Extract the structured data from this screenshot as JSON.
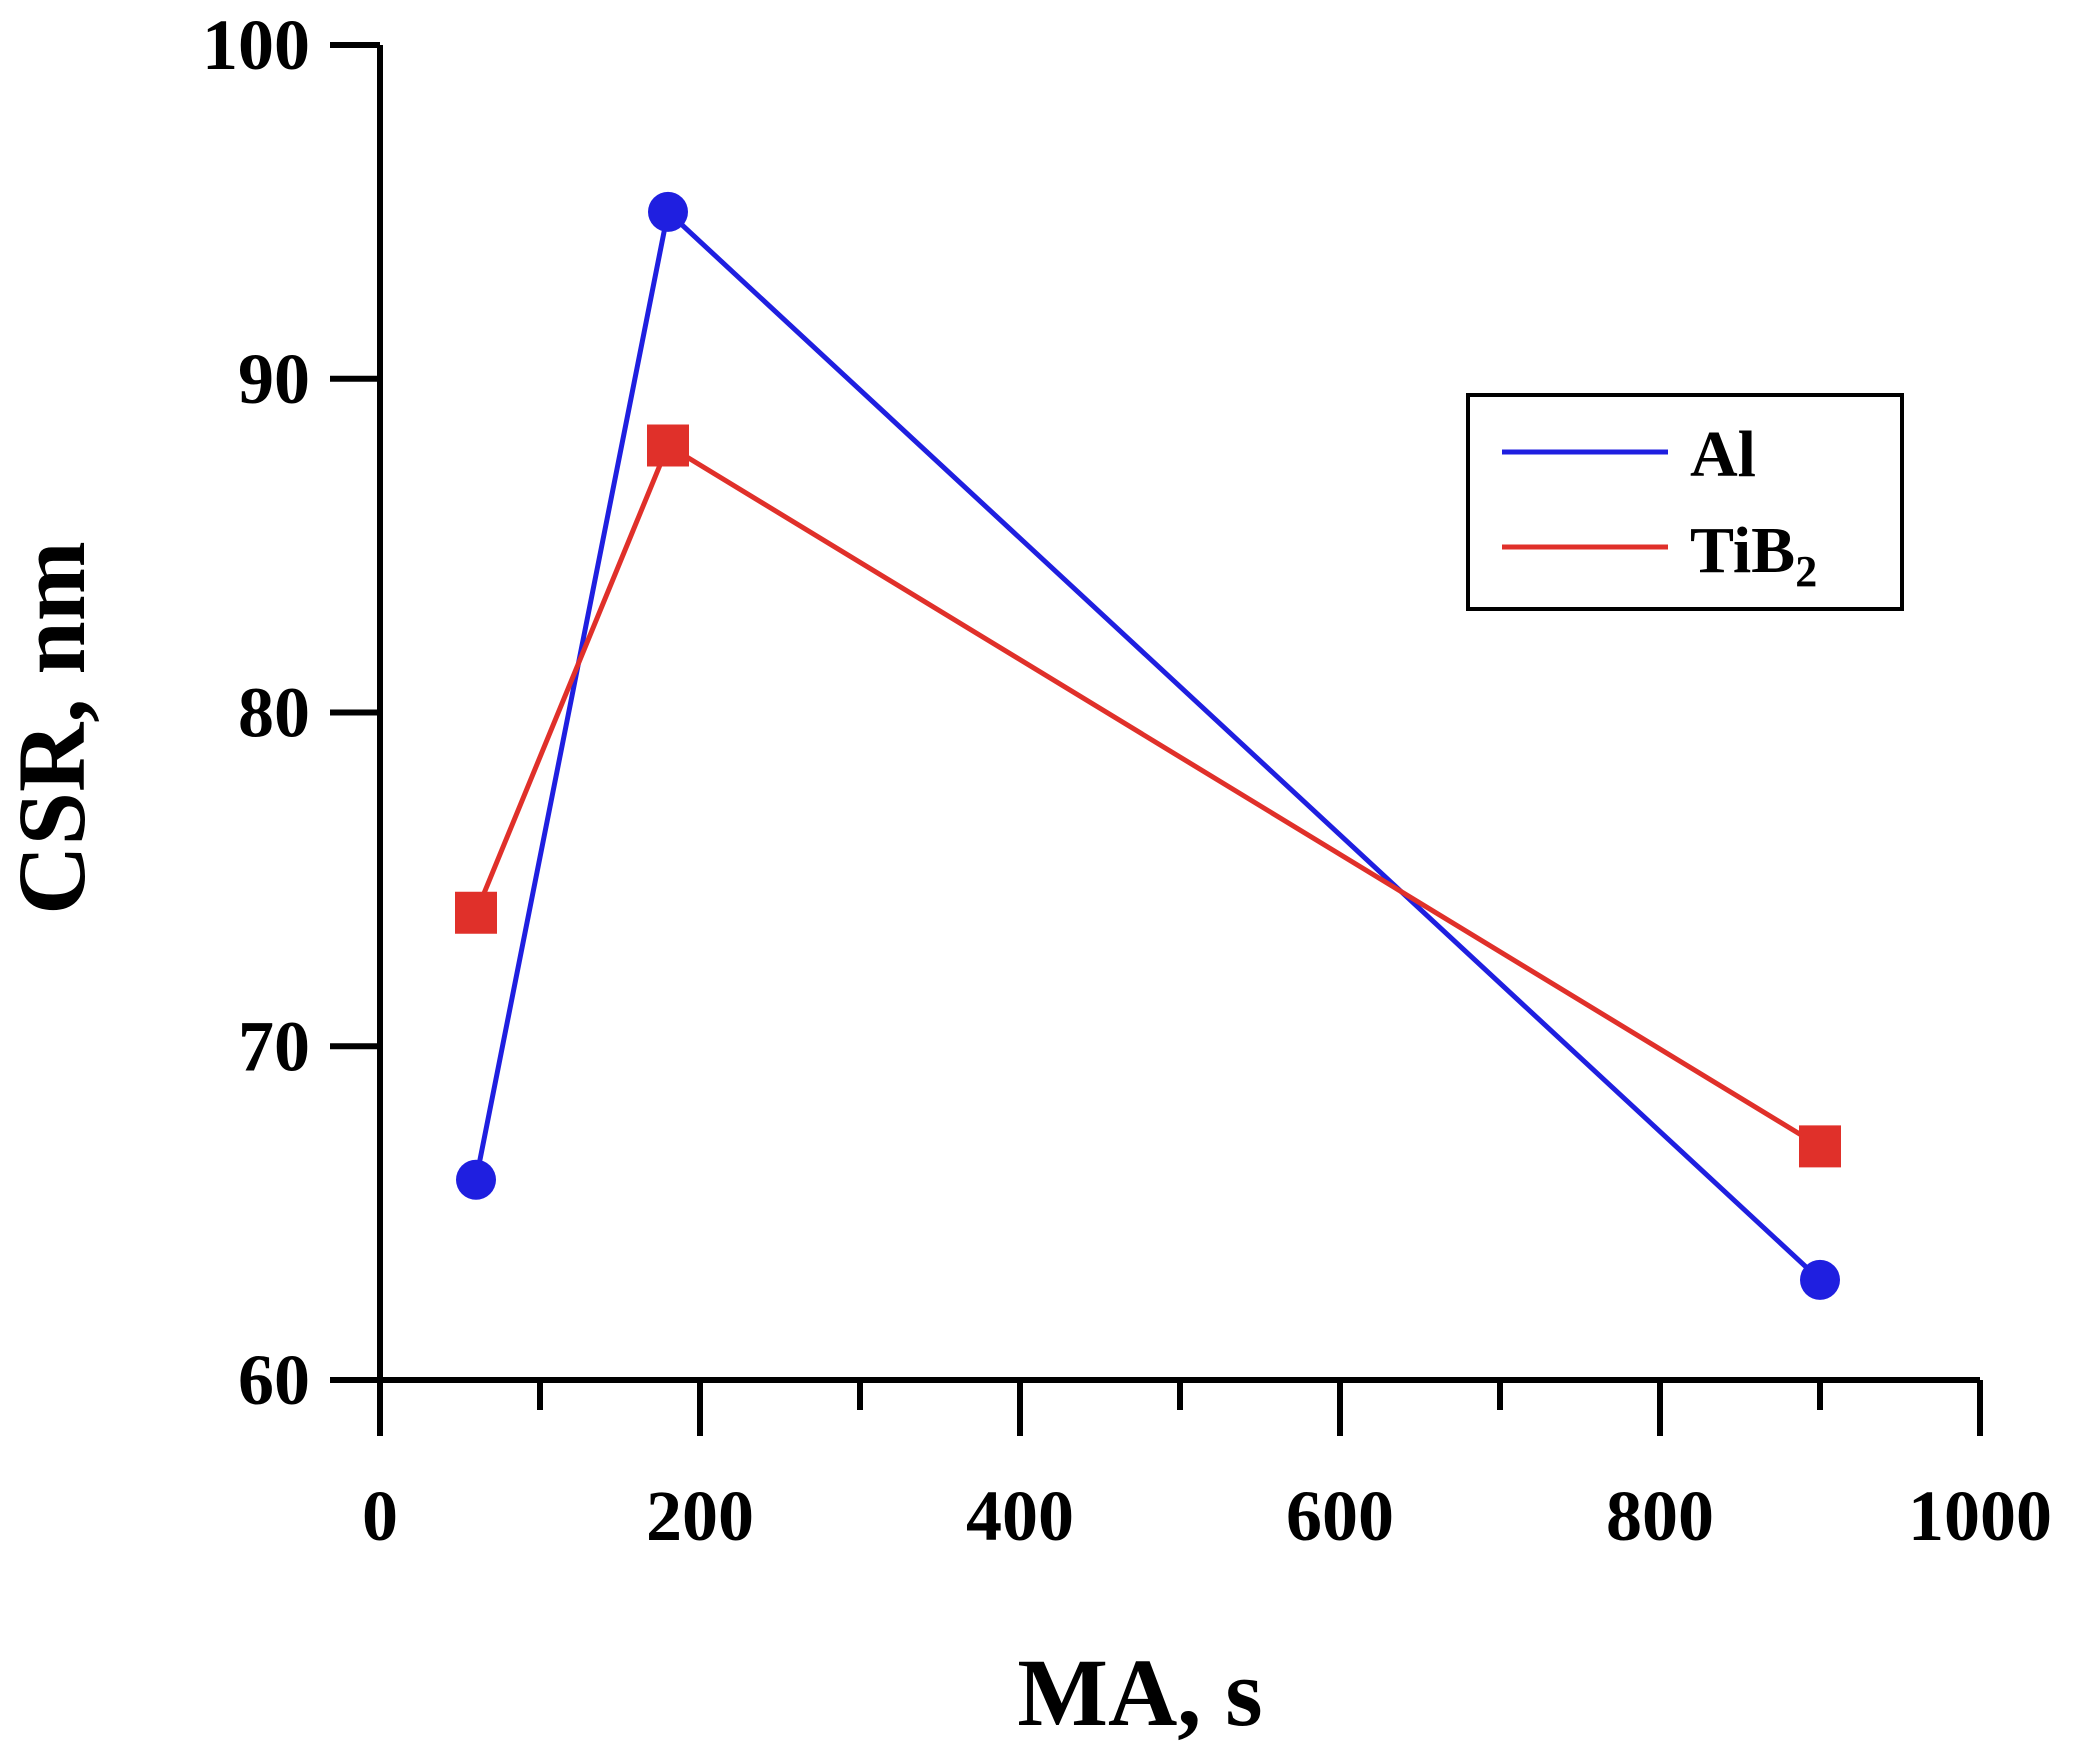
{
  "chart_data": {
    "type": "line",
    "title": "",
    "xlabel": "MA, s",
    "ylabel": "CSR, nm",
    "xlim": [
      0,
      1000
    ],
    "ylim": [
      60,
      100
    ],
    "x_ticks": [
      0,
      200,
      400,
      600,
      800,
      1000
    ],
    "x_tick_labels": [
      "0",
      "200",
      "400",
      "600",
      "800",
      "1000"
    ],
    "x_minor_ticks": [
      100,
      300,
      500,
      700,
      900
    ],
    "y_ticks": [
      60,
      70,
      80,
      90,
      100
    ],
    "y_tick_labels": [
      "60",
      "70",
      "80",
      "90",
      "100"
    ],
    "grid": false,
    "legend_position": "top-right",
    "series": [
      {
        "name": "Al",
        "label_main": "Al",
        "label_sub": "",
        "color": "#1f1fe0",
        "marker": "circle",
        "x": [
          60,
          180,
          900
        ],
        "y": [
          66,
          95,
          63
        ]
      },
      {
        "name": "TiB2",
        "label_main": "TiB",
        "label_sub": "2",
        "color": "#e0302a",
        "marker": "square",
        "x": [
          60,
          180,
          900
        ],
        "y": [
          74,
          88,
          67
        ]
      }
    ]
  }
}
